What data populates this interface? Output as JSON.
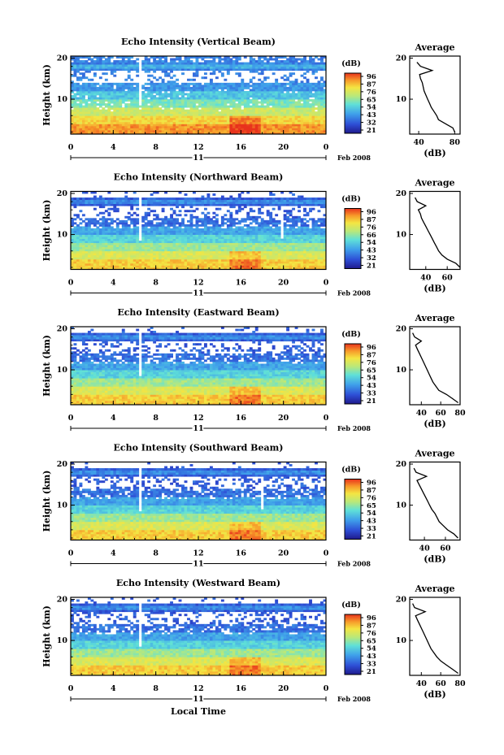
{
  "figure": {
    "xlabel": "Local Time",
    "date_label": "Feb 2008",
    "day_label": "11",
    "avg_title": "Average",
    "colorbar_unit": "(dB)"
  },
  "chart_data": [
    {
      "type": "heatmap",
      "title": "Echo Intensity (Vertical Beam)",
      "ylabel": "Height (km)",
      "x_ticks": [
        "0",
        "4",
        "8",
        "12",
        "16",
        "20",
        "0"
      ],
      "y_ticks": [
        "20",
        "10"
      ],
      "xlim": [
        0,
        24
      ],
      "ylim": [
        1.5,
        20.5
      ],
      "colorbar": {
        "unit": "(dB)",
        "ticks": [
          "96",
          "87",
          "76",
          "65",
          "54",
          "43",
          "32",
          "21"
        ],
        "range": [
          21,
          96
        ]
      },
      "average_profile": {
        "title": "Average",
        "xlabel": "(dB)",
        "x_ticks": [
          "40",
          "80"
        ],
        "y_ticks": [
          "20",
          "10"
        ],
        "xlim": [
          30,
          86
        ],
        "height": [
          2,
          3,
          4,
          5,
          6,
          7,
          8,
          9,
          10,
          11,
          12,
          13,
          14,
          15,
          16,
          17,
          18,
          19
        ],
        "db": [
          80,
          78,
          70,
          62,
          60,
          57,
          54,
          52,
          50,
          48,
          46,
          45,
          44,
          42,
          41,
          55,
          42,
          38
        ]
      }
    },
    {
      "type": "heatmap",
      "title": "Echo Intensity (Northward Beam)",
      "ylabel": "Height (km)",
      "x_ticks": [
        "0",
        "4",
        "8",
        "12",
        "16",
        "20",
        "0"
      ],
      "y_ticks": [
        "20",
        "10"
      ],
      "xlim": [
        0,
        24
      ],
      "ylim": [
        1.5,
        20.5
      ],
      "colorbar": {
        "unit": "(dB)",
        "ticks": [
          "96",
          "87",
          "76",
          "66",
          "54",
          "43",
          "32",
          "21"
        ],
        "range": [
          21,
          96
        ]
      },
      "average_profile": {
        "title": "Average",
        "xlabel": "(dB)",
        "x_ticks": [
          "40",
          "60"
        ],
        "y_ticks": [
          "20",
          "10"
        ],
        "xlim": [
          25,
          72
        ],
        "height": [
          2,
          3,
          4,
          5,
          6,
          7,
          8,
          9,
          10,
          11,
          12,
          13,
          14,
          15,
          16,
          17,
          18,
          19
        ],
        "db": [
          72,
          68,
          60,
          55,
          52,
          50,
          48,
          46,
          44,
          42,
          40,
          38,
          36,
          35,
          33,
          40,
          32,
          30
        ]
      }
    },
    {
      "type": "heatmap",
      "title": "Echo Intensity (Eastward Beam)",
      "ylabel": "Height (km)",
      "x_ticks": [
        "0",
        "4",
        "8",
        "12",
        "16",
        "20",
        "0"
      ],
      "y_ticks": [
        "20",
        "10"
      ],
      "xlim": [
        0,
        24
      ],
      "ylim": [
        1.5,
        20.5
      ],
      "colorbar": {
        "unit": "(dB)",
        "ticks": [
          "96",
          "87",
          "76",
          "65",
          "54",
          "43",
          "33",
          "21"
        ],
        "range": [
          21,
          96
        ]
      },
      "average_profile": {
        "title": "Average",
        "xlabel": "(dB)",
        "x_ticks": [
          "40",
          "60",
          "80"
        ],
        "y_ticks": [
          "20",
          "10"
        ],
        "xlim": [
          28,
          80
        ],
        "height": [
          2,
          3,
          4,
          5,
          6,
          7,
          8,
          9,
          10,
          11,
          12,
          13,
          14,
          15,
          16,
          17,
          18,
          19
        ],
        "db": [
          78,
          72,
          66,
          58,
          55,
          52,
          50,
          48,
          46,
          44,
          42,
          40,
          38,
          36,
          34,
          40,
          33,
          31
        ]
      }
    },
    {
      "type": "heatmap",
      "title": "Echo Intensity (Southward Beam)",
      "ylabel": "Height (km)",
      "x_ticks": [
        "0",
        "4",
        "8",
        "12",
        "16",
        "20",
        "0"
      ],
      "y_ticks": [
        "20",
        "10"
      ],
      "xlim": [
        0,
        24
      ],
      "ylim": [
        1.5,
        20.5
      ],
      "colorbar": {
        "unit": "(dB)",
        "ticks": [
          "96",
          "87",
          "76",
          "65",
          "54",
          "43",
          "33",
          "21"
        ],
        "range": [
          21,
          96
        ]
      },
      "average_profile": {
        "title": "Average",
        "xlabel": "(dB)",
        "x_ticks": [
          "40",
          "60"
        ],
        "y_ticks": [
          "20",
          "10"
        ],
        "xlim": [
          26,
          74
        ],
        "height": [
          2,
          3,
          4,
          5,
          6,
          7,
          8,
          9,
          10,
          11,
          12,
          13,
          14,
          15,
          16,
          17,
          18,
          19
        ],
        "db": [
          72,
          68,
          62,
          58,
          54,
          52,
          50,
          47,
          45,
          43,
          41,
          39,
          37,
          35,
          33,
          42,
          32,
          30
        ]
      }
    },
    {
      "type": "heatmap",
      "title": "Echo Intensity (Westward Beam)",
      "ylabel": "Height (km)",
      "x_ticks": [
        "0",
        "4",
        "8",
        "12",
        "16",
        "20",
        "0"
      ],
      "y_ticks": [
        "20",
        "10"
      ],
      "xlim": [
        0,
        24
      ],
      "ylim": [
        1.5,
        20.5
      ],
      "colorbar": {
        "unit": "(dB)",
        "ticks": [
          "96",
          "87",
          "76",
          "65",
          "54",
          "43",
          "33",
          "21"
        ],
        "range": [
          21,
          96
        ]
      },
      "average_profile": {
        "title": "Average",
        "xlabel": "(dB)",
        "x_ticks": [
          "40",
          "60",
          "80"
        ],
        "y_ticks": [
          "20",
          "10"
        ],
        "xlim": [
          28,
          80
        ],
        "height": [
          2,
          3,
          4,
          5,
          6,
          7,
          8,
          9,
          10,
          11,
          12,
          13,
          14,
          15,
          16,
          17,
          18,
          19
        ],
        "db": [
          78,
          72,
          66,
          60,
          56,
          53,
          50,
          48,
          46,
          44,
          42,
          40,
          38,
          36,
          34,
          44,
          33,
          31
        ]
      }
    }
  ]
}
